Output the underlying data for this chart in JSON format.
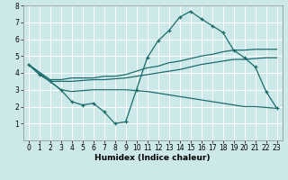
{
  "xlabel": "Humidex (Indice chaleur)",
  "bg_color": "#cde8e8",
  "grid_color": "#ffffff",
  "line_color": "#1a6b6b",
  "xlim": [
    -0.5,
    23.5
  ],
  "ylim": [
    0,
    8
  ],
  "xticks": [
    0,
    1,
    2,
    3,
    4,
    5,
    6,
    7,
    8,
    9,
    10,
    11,
    12,
    13,
    14,
    15,
    16,
    17,
    18,
    19,
    20,
    21,
    22,
    23
  ],
  "yticks": [
    1,
    2,
    3,
    4,
    5,
    6,
    7,
    8
  ],
  "curve_main": {
    "x": [
      0,
      1,
      2,
      3,
      4,
      5,
      6,
      7,
      8,
      9,
      10,
      11,
      12,
      13,
      14,
      15,
      16,
      17,
      18,
      19,
      20,
      21,
      22,
      23
    ],
    "y": [
      4.5,
      3.9,
      3.5,
      3.0,
      2.3,
      2.1,
      2.2,
      1.7,
      1.0,
      1.1,
      3.0,
      4.9,
      5.9,
      6.5,
      7.3,
      7.65,
      7.2,
      6.8,
      6.4,
      5.35,
      4.9,
      4.35,
      2.9,
      1.9
    ]
  },
  "curve_upper": {
    "x": [
      0,
      2,
      3,
      4,
      5,
      6,
      7,
      8,
      9,
      10,
      11,
      12,
      13,
      14,
      15,
      16,
      17,
      18,
      19,
      20,
      21,
      22,
      23
    ],
    "y": [
      4.5,
      3.6,
      3.6,
      3.7,
      3.7,
      3.7,
      3.8,
      3.8,
      3.9,
      4.1,
      4.3,
      4.4,
      4.6,
      4.7,
      4.85,
      5.0,
      5.1,
      5.25,
      5.35,
      5.35,
      5.4,
      5.4,
      5.4
    ]
  },
  "curve_lower": {
    "x": [
      0,
      2,
      3,
      4,
      5,
      6,
      7,
      8,
      9,
      10,
      11,
      12,
      13,
      14,
      15,
      16,
      17,
      18,
      19,
      20,
      21,
      22,
      23
    ],
    "y": [
      4.5,
      3.5,
      3.5,
      3.5,
      3.55,
      3.6,
      3.6,
      3.65,
      3.7,
      3.8,
      3.9,
      4.0,
      4.1,
      4.2,
      4.35,
      4.5,
      4.6,
      4.7,
      4.8,
      4.8,
      4.85,
      4.9,
      4.9
    ]
  },
  "curve_bottom": {
    "x": [
      2,
      3,
      4,
      5,
      6,
      7,
      8,
      9,
      10,
      11,
      12,
      13,
      14,
      15,
      16,
      17,
      18,
      19,
      20,
      21,
      22,
      23
    ],
    "y": [
      3.5,
      3.0,
      2.9,
      2.95,
      3.0,
      3.0,
      3.0,
      3.0,
      2.95,
      2.9,
      2.8,
      2.7,
      2.6,
      2.5,
      2.4,
      2.3,
      2.2,
      2.1,
      2.0,
      2.0,
      1.95,
      1.9
    ]
  }
}
